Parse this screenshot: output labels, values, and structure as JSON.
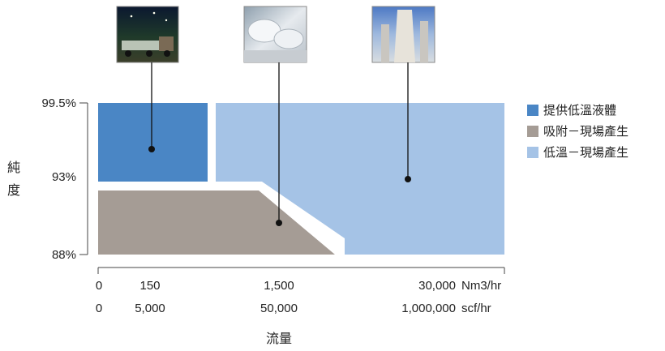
{
  "chart_data": {
    "type": "area",
    "y_axis": {
      "label_chars": [
        "純",
        "度"
      ],
      "ticks": [
        "99.5%",
        "93%",
        "88%"
      ]
    },
    "x_axis": {
      "title": "流量",
      "rows": [
        {
          "values": [
            "0",
            "150",
            "1,500",
            "30,000"
          ],
          "unit": "Nm3/hr"
        },
        {
          "values": [
            "0",
            "5,000",
            "50,000",
            "1,000,000"
          ],
          "unit": "scf/hr"
        }
      ]
    },
    "series": [
      {
        "name": "提供低溫液體",
        "color": "#4a86c5",
        "region": {
          "flow_nm3hr": [
            0,
            150
          ],
          "purity_pct": [
            93,
            99.5
          ]
        }
      },
      {
        "name": "吸附－現場產生",
        "color": "#a59c95",
        "region": {
          "flow_nm3hr": [
            0,
            1500
          ],
          "purity_pct": [
            88,
            93
          ]
        }
      },
      {
        "name": "低溫－現場產生",
        "color": "#a5c3e6",
        "region": {
          "flow_nm3hr": [
            150,
            30000
          ],
          "purity_pct": [
            88,
            99.5
          ]
        }
      }
    ],
    "images": [
      {
        "series": "提供低溫液體",
        "icon": "truck-photo"
      },
      {
        "series": "吸附－現場產生",
        "icon": "tanks-photo"
      },
      {
        "series": "低溫－現場產生",
        "icon": "tower-photo"
      }
    ]
  }
}
